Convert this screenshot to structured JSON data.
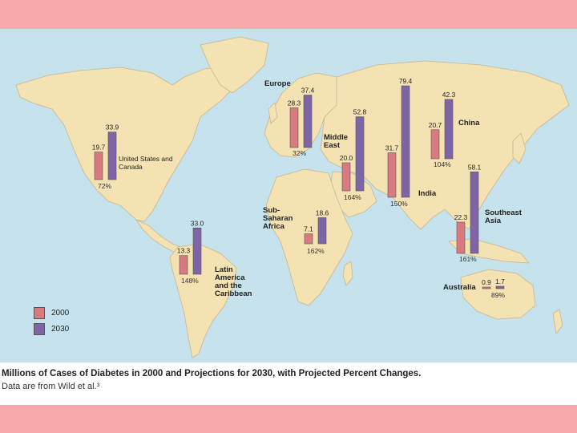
{
  "caption": {
    "title": "Millions of Cases of Diabetes in 2000 and Projections for 2030, with Projected Percent Changes.",
    "source": "Data are from Wild et al.³"
  },
  "legend": [
    {
      "label": "2000",
      "color": "#d97a80"
    },
    {
      "label": "2030",
      "color": "#7f64a6"
    }
  ],
  "colors": {
    "ocean": "#c6e2ec",
    "land": "#f4e2b2",
    "border": "#c9b88e"
  },
  "regions": [
    {
      "id": "us-canada",
      "name": "United States and Canada",
      "v2000": "19.7",
      "v2030": "33.9",
      "pct": "72%"
    },
    {
      "id": "europe",
      "name": "Europe",
      "v2000": "28.3",
      "v2030": "37.4",
      "pct": "32%"
    },
    {
      "id": "middle-east",
      "name": "Middle East",
      "v2000": "20.0",
      "v2030": "52.8",
      "pct": "164%"
    },
    {
      "id": "india",
      "name": "India",
      "v2000": "31.7",
      "v2030": "79.4",
      "pct": "150%"
    },
    {
      "id": "china",
      "name": "China",
      "v2000": "20.7",
      "v2030": "42.3",
      "pct": "104%"
    },
    {
      "id": "southeast-asia",
      "name": "Southeast Asia",
      "v2000": "22.3",
      "v2030": "58.1",
      "pct": "161%"
    },
    {
      "id": "sub-saharan-africa",
      "name": "Sub-Saharan Africa",
      "v2000": "7.1",
      "v2030": "18.6",
      "pct": "162%"
    },
    {
      "id": "latin-america",
      "name": "Latin America and the Caribbean",
      "v2000": "13.3",
      "v2030": "33.0",
      "pct": "148%"
    },
    {
      "id": "australia",
      "name": "Australia",
      "v2000": "0.9",
      "v2030": "1.7",
      "pct": "89%"
    }
  ]
}
